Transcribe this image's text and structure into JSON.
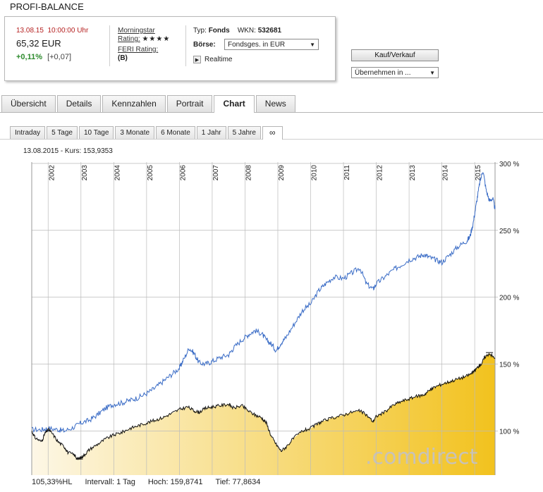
{
  "page_title": "PROFI-BALANCE",
  "quote": {
    "date": "13.08.15",
    "time": "10:00:00 Uhr",
    "price": "65,32 EUR",
    "change_pct": "+0,11%",
    "change_abs": "[+0,07]",
    "morningstar_label": "Morningstar",
    "rating_label": "Rating:",
    "rating_stars": "★★★★",
    "feri_label": "FERI Rating:",
    "feri_value": "(B)",
    "typ_label": "Typ:",
    "typ_value": "Fonds",
    "wkn_label": "WKN:",
    "wkn_value": "532681",
    "boerse_label": "Börse:",
    "boerse_value": "Fondsges. in EUR",
    "realtime_label": "Realtime"
  },
  "actions": {
    "kauf_label": "Kauf/Verkauf",
    "uebernehmen_label": "Übernehmen in ..."
  },
  "tabs": [
    {
      "label": "Übersicht",
      "active": false
    },
    {
      "label": "Details",
      "active": false
    },
    {
      "label": "Kennzahlen",
      "active": false
    },
    {
      "label": "Portrait",
      "active": false
    },
    {
      "label": "Chart",
      "active": true
    },
    {
      "label": "News",
      "active": false
    }
  ],
  "ranges": [
    {
      "label": "Intraday",
      "active": false
    },
    {
      "label": "5 Tage",
      "active": false
    },
    {
      "label": "10 Tage",
      "active": false
    },
    {
      "label": "3 Monate",
      "active": false
    },
    {
      "label": "6 Monate",
      "active": false
    },
    {
      "label": "1 Jahr",
      "active": false
    },
    {
      "label": "5 Jahre",
      "active": false
    },
    {
      "label": "∞",
      "active": true
    }
  ],
  "chart_header": "13.08.2015 - Kurs: 153,9353",
  "footer": {
    "hl": "105,33%HL",
    "intervall": "Intervall: 1 Tag",
    "hoch": "Hoch: 159,8741",
    "tief": "Tief: 77,8634"
  },
  "chart_data": {
    "type": "line",
    "title": "",
    "xlabel": "",
    "ylabel": "",
    "x_ticks": [
      "2002",
      "2003",
      "2004",
      "2005",
      "2006",
      "2007",
      "2008",
      "2009",
      "2010",
      "2011",
      "2012",
      "2013",
      "2014",
      "2015"
    ],
    "y_ticks": [
      "100 %",
      "150 %",
      "200 %",
      "250 %",
      "300 %"
    ],
    "ylim": [
      67,
      301
    ],
    "xlim": [
      2001.5,
      2015.62
    ],
    "grid": true,
    "colors": {
      "line_fund": "#111111",
      "line_compare": "#3a6cc6",
      "area_light": "#fdf7e6",
      "area_dark": "#f2c21e",
      "grid": "#bbbbbb"
    },
    "series": [
      {
        "key": "fund",
        "x": [
          2001.5,
          2001.6,
          2001.8,
          2001.9,
          2002.0,
          2002.1,
          2002.3,
          2002.5,
          2002.6,
          2002.8,
          2002.9,
          2003.0,
          2003.1,
          2003.25,
          2003.5,
          2003.75,
          2004.0,
          2004.25,
          2004.5,
          2004.75,
          2005.0,
          2005.25,
          2005.5,
          2005.75,
          2006.0,
          2006.25,
          2006.45,
          2006.6,
          2006.8,
          2007.0,
          2007.25,
          2007.5,
          2007.65,
          2007.9,
          2008.1,
          2008.3,
          2008.5,
          2008.65,
          2008.8,
          2008.95,
          2009.1,
          2009.25,
          2009.5,
          2009.75,
          2010.0,
          2010.25,
          2010.45,
          2010.7,
          2011.0,
          2011.25,
          2011.5,
          2011.7,
          2011.9,
          2012.0,
          2012.25,
          2012.5,
          2012.75,
          2013.0,
          2013.25,
          2013.45,
          2013.6,
          2013.8,
          2014.0,
          2014.25,
          2014.5,
          2014.75,
          2014.9,
          2015.0,
          2015.1,
          2015.2,
          2015.3,
          2015.45,
          2015.62
        ],
        "values": [
          100,
          95,
          92,
          98,
          101,
          99,
          92,
          88,
          84,
          82,
          79,
          80,
          82,
          86,
          90,
          94,
          97,
          99,
          102,
          104,
          106,
          108,
          110,
          113,
          116,
          118,
          115,
          114,
          117,
          118,
          119,
          120,
          117,
          119,
          115,
          112,
          110,
          106,
          96,
          90,
          85,
          88,
          95,
          100,
          102,
          106,
          108,
          110,
          112,
          114,
          115,
          112,
          107,
          111,
          114,
          119,
          122,
          124,
          126,
          127,
          130,
          133,
          135,
          137,
          139,
          141,
          143,
          145,
          148,
          150,
          155,
          158,
          154
        ]
      },
      {
        "key": "compare",
        "x": [
          2001.5,
          2001.8,
          2002.0,
          2002.3,
          2002.5,
          2002.8,
          2003.0,
          2003.25,
          2003.5,
          2003.75,
          2004.0,
          2004.25,
          2004.5,
          2004.75,
          2005.0,
          2005.25,
          2005.5,
          2005.75,
          2006.0,
          2006.1,
          2006.3,
          2006.45,
          2006.6,
          2006.8,
          2007.0,
          2007.25,
          2007.5,
          2007.65,
          2007.9,
          2008.1,
          2008.3,
          2008.5,
          2008.65,
          2008.8,
          2008.95,
          2009.1,
          2009.25,
          2009.5,
          2009.75,
          2010.0,
          2010.25,
          2010.45,
          2010.7,
          2011.0,
          2011.25,
          2011.5,
          2011.7,
          2011.9,
          2012.0,
          2012.25,
          2012.5,
          2012.75,
          2013.0,
          2013.25,
          2013.45,
          2013.6,
          2013.8,
          2014.0,
          2014.25,
          2014.5,
          2014.75,
          2014.85,
          2014.95,
          2015.05,
          2015.15,
          2015.25,
          2015.35,
          2015.45,
          2015.55,
          2015.62
        ],
        "values": [
          101,
          101,
          102,
          101,
          100,
          103,
          106,
          108,
          112,
          117,
          120,
          121,
          123,
          125,
          128,
          132,
          137,
          142,
          147,
          152,
          162,
          158,
          151,
          150,
          152,
          155,
          157,
          162,
          168,
          172,
          175,
          173,
          168,
          165,
          160,
          166,
          170,
          180,
          190,
          195,
          205,
          210,
          215,
          214,
          218,
          222,
          210,
          206,
          210,
          215,
          220,
          224,
          228,
          230,
          232,
          230,
          228,
          226,
          232,
          238,
          242,
          245,
          255,
          270,
          285,
          295,
          280,
          272,
          274,
          266
        ]
      }
    ]
  }
}
